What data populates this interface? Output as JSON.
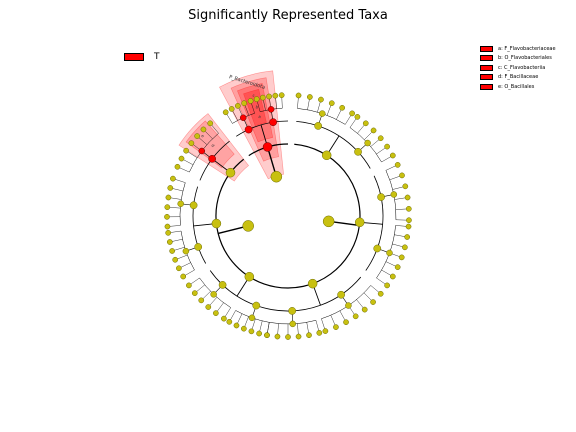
{
  "title": "Significantly Represented Taxa",
  "legend_left": {
    "label": "T",
    "color": "#ff0000"
  },
  "legend_right": [
    {
      "text": "a: F_Flavobacteriaceae",
      "color": "#ff0000"
    },
    {
      "text": "b: O_Flavobacteriales",
      "color": "#ff0000"
    },
    {
      "text": "c: C_Flavobacteriia",
      "color": "#ff0000"
    },
    {
      "text": "d: F_Bacillaceae",
      "color": "#ff0000"
    },
    {
      "text": "e: O_Bacillales",
      "color": "#ff0000"
    }
  ],
  "clade_labels": {
    "phylum": "P_Bacteroidota",
    "a": "a",
    "b": "b",
    "c": "c",
    "d": "d",
    "e": "e"
  },
  "colors": {
    "node_fill": "#c8c010",
    "node_stroke": "#6a6a00",
    "highlight_node": "#ff0000",
    "highlight_shade": "#ff0000",
    "edge": "#000000"
  }
}
